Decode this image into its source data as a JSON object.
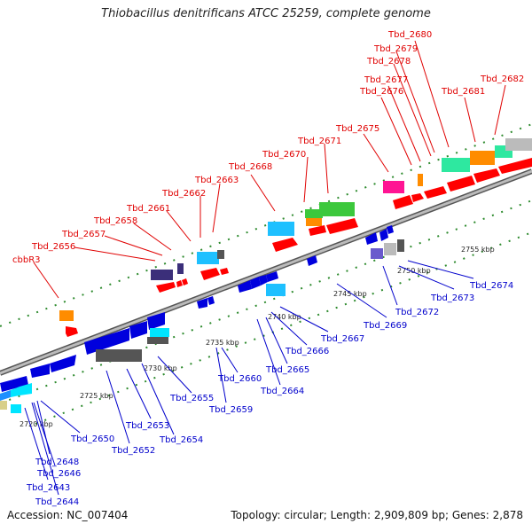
{
  "title": "Thiobacillus denitrificans ATCC 25259, complete genome",
  "accession": "Accession: NC_007404",
  "summary": "Topology: circular; Length: 2,909,809 bp; Genes: 2,878",
  "ticks": [
    "2720 kbp",
    "2725 kbp",
    "2730 kbp",
    "2735 kbp",
    "2740 kbp",
    "2745 kbp",
    "2750 kbp",
    "2755 kbp"
  ],
  "forward_labels": [
    "cbbR3",
    "Tbd_2656",
    "Tbd_2657",
    "Tbd_2658",
    "Tbd_2661",
    "Tbd_2662",
    "Tbd_2663",
    "Tbd_2668",
    "Tbd_2670",
    "Tbd_2671",
    "Tbd_2675",
    "Tbd_2676",
    "Tbd_2677",
    "Tbd_2678",
    "Tbd_2679",
    "Tbd_2680",
    "Tbd_2681",
    "Tbd_2682"
  ],
  "reverse_labels": [
    "Tbd_2643",
    "Tbd_2644",
    "Tbd_2646",
    "Tbd_2648",
    "Tbd_2650",
    "Tbd_2652",
    "Tbd_2653",
    "Tbd_2654",
    "Tbd_2655",
    "Tbd_2659",
    "Tbd_2660",
    "Tbd_2664",
    "Tbd_2665",
    "Tbd_2666",
    "Tbd_2667",
    "Tbd_2669",
    "Tbd_2672",
    "Tbd_2673",
    "Tbd_2674"
  ],
  "colors": {
    "forward_label": "#e00000",
    "reverse_label": "#0000cc",
    "backbone": "#888888",
    "dots": "#2e8b2e"
  }
}
